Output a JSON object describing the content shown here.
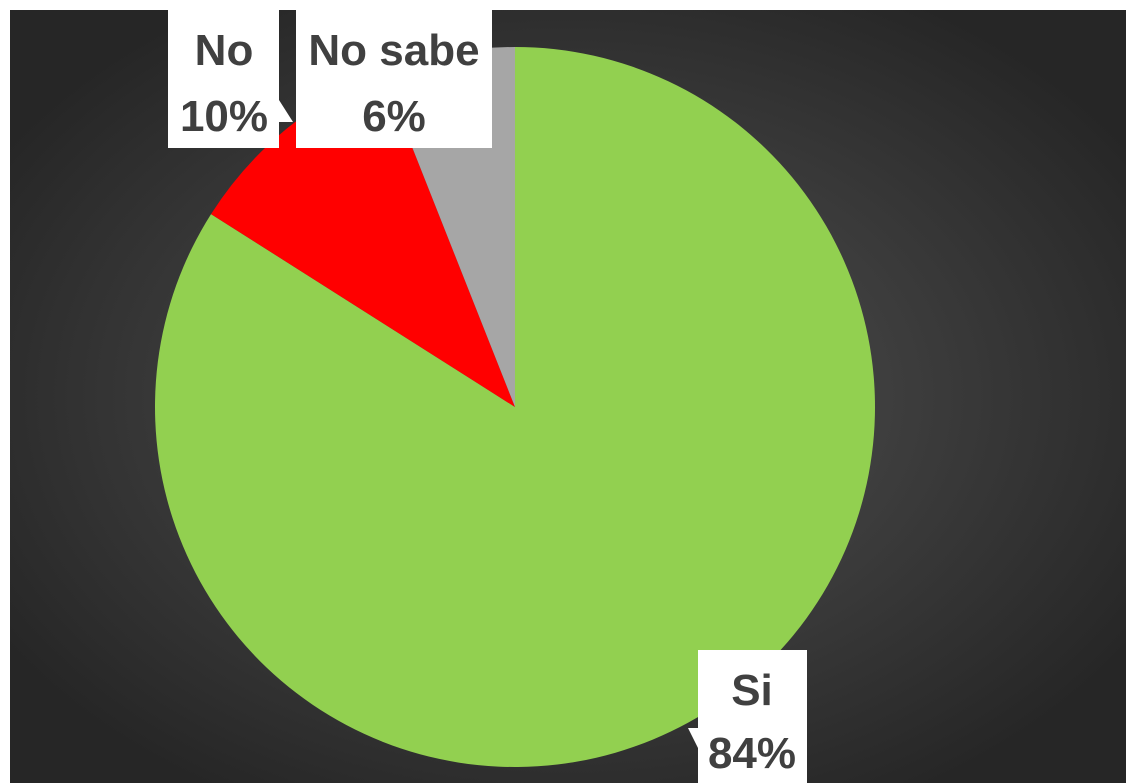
{
  "chart_data": {
    "type": "pie",
    "start_angle_deg": 0,
    "direction": "clockwise",
    "slices": [
      {
        "label": "Si",
        "value": 84,
        "value_label": "84%",
        "color": "#92d050"
      },
      {
        "label": "No",
        "value": 10,
        "value_label": "10%",
        "color": "#ff0000"
      },
      {
        "label": "No sabe",
        "value": 6,
        "value_label": "6%",
        "color": "#a6a6a6"
      }
    ],
    "title": "",
    "legend": "none",
    "background": "#3f3f3f"
  }
}
